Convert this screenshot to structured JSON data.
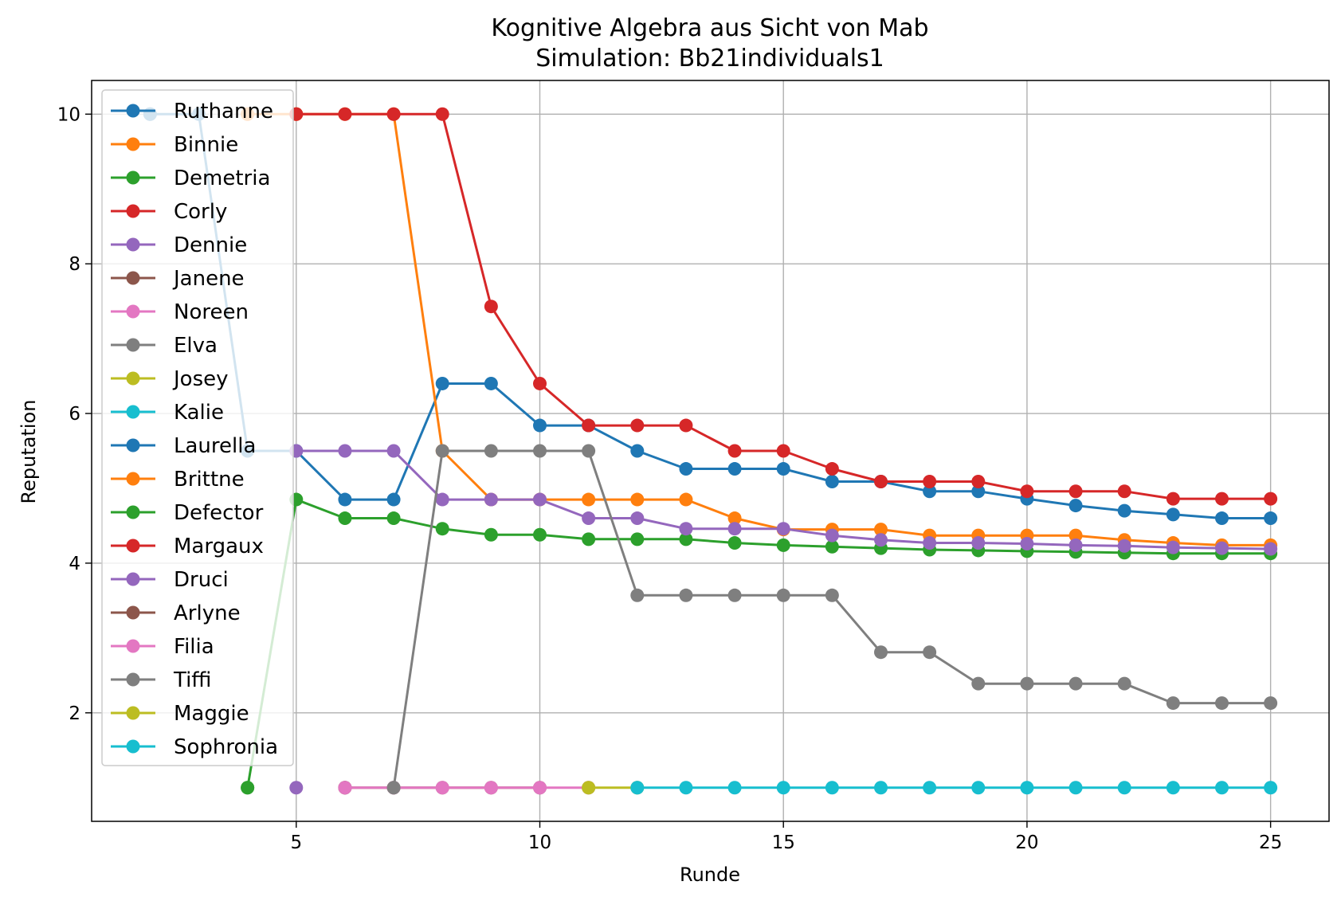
{
  "chart_data": {
    "type": "line",
    "title": "Kognitive Algebra aus Sicht von Mab",
    "subtitle": "Simulation: Bb21individuals1",
    "xlabel": "Runde",
    "ylabel": "Reputation",
    "xlim": [
      0.8,
      26.2
    ],
    "ylim": [
      0.55,
      10.45
    ],
    "xticks": [
      5,
      10,
      15,
      20,
      25
    ],
    "yticks": [
      2,
      4,
      6,
      8,
      10
    ],
    "grid": true,
    "legend_position": "upper-left",
    "colors": {
      "blue": "#1f77b4",
      "orange": "#ff7f0e",
      "green": "#2ca02c",
      "red": "#d62728",
      "purple": "#9467bd",
      "brown": "#8c564b",
      "pink": "#e377c2",
      "gray": "#7f7f7f",
      "olive": "#bcbd22",
      "cyan": "#17becf"
    },
    "series": [
      {
        "name": "Ruthanne",
        "color": "#1f77b4",
        "points": [
          [
            2,
            10
          ]
        ]
      },
      {
        "name": "Binnie",
        "color": "#ff7f0e",
        "points": [
          [
            4,
            10
          ]
        ]
      },
      {
        "name": "Demetria",
        "color": "#2ca02c",
        "points": [
          [
            4,
            1
          ]
        ]
      },
      {
        "name": "Corly",
        "color": "#d62728",
        "points": [
          [
            5,
            10
          ]
        ]
      },
      {
        "name": "Dennie",
        "color": "#9467bd",
        "points": [
          [
            5,
            1
          ]
        ]
      },
      {
        "name": "Janene",
        "color": "#8c564b",
        "points": [
          [
            6,
            1
          ]
        ]
      },
      {
        "name": "Noreen",
        "color": "#e377c2",
        "points": [
          [
            6,
            1
          ]
        ]
      },
      {
        "name": "Elva",
        "color": "#7f7f7f",
        "points": [
          [
            7,
            1
          ]
        ]
      },
      {
        "name": "Josey",
        "color": "#bcbd22",
        "points": [
          [
            11,
            1
          ]
        ]
      },
      {
        "name": "Kalie",
        "color": "#17becf",
        "points": [
          [
            12,
            1
          ]
        ]
      },
      {
        "name": "Laurella",
        "color": "#1f77b4",
        "points": [
          [
            2,
            10
          ],
          [
            3,
            10
          ],
          [
            4,
            5.5
          ],
          [
            5,
            5.5
          ],
          [
            6,
            4.85
          ],
          [
            7,
            4.85
          ],
          [
            8,
            6.4
          ],
          [
            9,
            6.4
          ],
          [
            10,
            5.84
          ],
          [
            11,
            5.84
          ],
          [
            12,
            5.5
          ],
          [
            13,
            5.26
          ],
          [
            14,
            5.26
          ],
          [
            15,
            5.26
          ],
          [
            16,
            5.09
          ],
          [
            17,
            5.09
          ],
          [
            18,
            4.96
          ],
          [
            19,
            4.96
          ],
          [
            20,
            4.86
          ],
          [
            21,
            4.77
          ],
          [
            22,
            4.7
          ],
          [
            23,
            4.65
          ],
          [
            24,
            4.6
          ],
          [
            25,
            4.6
          ]
        ]
      },
      {
        "name": "Brittne",
        "color": "#ff7f0e",
        "points": [
          [
            4,
            10
          ],
          [
            5,
            10
          ],
          [
            6,
            10
          ],
          [
            7,
            10
          ],
          [
            8,
            5.5
          ],
          [
            9,
            4.85
          ],
          [
            10,
            4.85
          ],
          [
            11,
            4.85
          ],
          [
            12,
            4.85
          ],
          [
            13,
            4.85
          ],
          [
            14,
            4.6
          ],
          [
            15,
            4.45
          ],
          [
            16,
            4.45
          ],
          [
            17,
            4.45
          ],
          [
            18,
            4.37
          ],
          [
            19,
            4.37
          ],
          [
            20,
            4.37
          ],
          [
            21,
            4.37
          ],
          [
            22,
            4.31
          ],
          [
            23,
            4.27
          ],
          [
            24,
            4.24
          ],
          [
            25,
            4.24
          ]
        ]
      },
      {
        "name": "Defector",
        "color": "#2ca02c",
        "points": [
          [
            4,
            1
          ],
          [
            5,
            4.85
          ],
          [
            6,
            4.6
          ],
          [
            7,
            4.6
          ],
          [
            8,
            4.46
          ],
          [
            9,
            4.38
          ],
          [
            10,
            4.38
          ],
          [
            11,
            4.32
          ],
          [
            12,
            4.32
          ],
          [
            13,
            4.32
          ],
          [
            14,
            4.27
          ],
          [
            15,
            4.24
          ],
          [
            16,
            4.22
          ],
          [
            17,
            4.2
          ],
          [
            18,
            4.18
          ],
          [
            19,
            4.17
          ],
          [
            20,
            4.16
          ],
          [
            21,
            4.15
          ],
          [
            22,
            4.14
          ],
          [
            23,
            4.13
          ],
          [
            24,
            4.13
          ],
          [
            25,
            4.13
          ]
        ]
      },
      {
        "name": "Margaux",
        "color": "#d62728",
        "points": [
          [
            5,
            10
          ],
          [
            6,
            10
          ],
          [
            7,
            10
          ],
          [
            8,
            10
          ],
          [
            9,
            7.43
          ],
          [
            10,
            6.4
          ],
          [
            11,
            5.84
          ],
          [
            12,
            5.84
          ],
          [
            13,
            5.84
          ],
          [
            14,
            5.5
          ],
          [
            15,
            5.5
          ],
          [
            16,
            5.26
          ],
          [
            17,
            5.09
          ],
          [
            18,
            5.09
          ],
          [
            19,
            5.09
          ],
          [
            20,
            4.96
          ],
          [
            21,
            4.96
          ],
          [
            22,
            4.96
          ],
          [
            23,
            4.86
          ],
          [
            24,
            4.86
          ],
          [
            25,
            4.86
          ]
        ]
      },
      {
        "name": "Druci",
        "color": "#9467bd",
        "points": [
          [
            5,
            5.5
          ],
          [
            6,
            5.5
          ],
          [
            7,
            5.5
          ],
          [
            8,
            4.85
          ],
          [
            9,
            4.85
          ],
          [
            10,
            4.85
          ],
          [
            11,
            4.6
          ],
          [
            12,
            4.6
          ],
          [
            13,
            4.46
          ],
          [
            14,
            4.46
          ],
          [
            15,
            4.46
          ],
          [
            16,
            4.37
          ],
          [
            17,
            4.31
          ],
          [
            18,
            4.27
          ],
          [
            19,
            4.27
          ],
          [
            20,
            4.26
          ],
          [
            21,
            4.24
          ],
          [
            22,
            4.23
          ],
          [
            23,
            4.21
          ],
          [
            24,
            4.2
          ],
          [
            25,
            4.19
          ]
        ]
      },
      {
        "name": "Arlyne",
        "color": "#8c564b",
        "points": [
          [
            6,
            1
          ],
          [
            7,
            1
          ],
          [
            8,
            1
          ],
          [
            9,
            1
          ],
          [
            10,
            1
          ]
        ]
      },
      {
        "name": "Filia",
        "color": "#e377c2",
        "points": [
          [
            6,
            1
          ],
          [
            7,
            1
          ],
          [
            8,
            1
          ],
          [
            9,
            1
          ],
          [
            10,
            1
          ],
          [
            11,
            1
          ]
        ]
      },
      {
        "name": "Tiffi",
        "color": "#7f7f7f",
        "points": [
          [
            7,
            1
          ],
          [
            8,
            5.5
          ],
          [
            9,
            5.5
          ],
          [
            10,
            5.5
          ],
          [
            11,
            5.5
          ],
          [
            12,
            3.57
          ],
          [
            13,
            3.57
          ],
          [
            14,
            3.57
          ],
          [
            15,
            3.57
          ],
          [
            16,
            3.57
          ],
          [
            17,
            2.81
          ],
          [
            18,
            2.81
          ],
          [
            19,
            2.39
          ],
          [
            20,
            2.39
          ],
          [
            21,
            2.39
          ],
          [
            22,
            2.39
          ],
          [
            23,
            2.13
          ],
          [
            24,
            2.13
          ],
          [
            25,
            2.13
          ]
        ]
      },
      {
        "name": "Maggie",
        "color": "#bcbd22",
        "points": [
          [
            11,
            1
          ],
          [
            12,
            1
          ]
        ]
      },
      {
        "name": "Sophronia",
        "color": "#17becf",
        "points": [
          [
            12,
            1
          ],
          [
            13,
            1
          ],
          [
            14,
            1
          ],
          [
            15,
            1
          ],
          [
            16,
            1
          ],
          [
            17,
            1
          ],
          [
            18,
            1
          ],
          [
            19,
            1
          ],
          [
            20,
            1
          ],
          [
            21,
            1
          ],
          [
            22,
            1
          ],
          [
            23,
            1
          ],
          [
            24,
            1
          ],
          [
            25,
            1
          ]
        ]
      }
    ]
  }
}
